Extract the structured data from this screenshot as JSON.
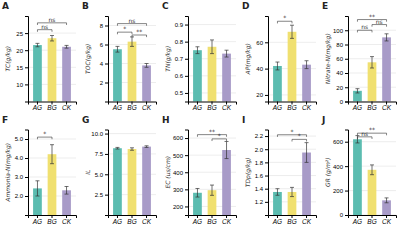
{
  "chart_data": [
    {
      "type": "bar",
      "title": "A",
      "ylabel": "TC(g/kg)",
      "categories": [
        "AG",
        "BG",
        "CK"
      ],
      "colors": [
        "#5bbcb0",
        "#f0e070",
        "#a89bc8"
      ],
      "values": [
        21.5,
        23.5,
        21.0
      ],
      "errors": [
        0.5,
        0.8,
        0.4
      ],
      "ylim": [
        5,
        30
      ],
      "yticks": [
        10,
        15,
        20,
        25
      ],
      "grid": true,
      "annotations": [
        {
          "x1": "AG",
          "x2": "BG",
          "y": 26.0,
          "text": "ns"
        },
        {
          "x1": "AG",
          "x2": "CK",
          "y": 28.0,
          "text": "ns"
        }
      ]
    },
    {
      "type": "bar",
      "title": "B",
      "ylabel": "TOC(g/kg)",
      "categories": [
        "AG",
        "BG",
        "CK"
      ],
      "colors": [
        "#5bbcb0",
        "#f0e070",
        "#a89bc8"
      ],
      "values": [
        5.5,
        6.3,
        3.8
      ],
      "errors": [
        0.3,
        0.5,
        0.2
      ],
      "ylim": [
        0,
        9
      ],
      "yticks": [
        2,
        4,
        6,
        8
      ],
      "grid": true,
      "annotations": [
        {
          "x1": "AG",
          "x2": "BG",
          "y": 7.3,
          "text": "*"
        },
        {
          "x1": "AG",
          "x2": "CK",
          "y": 8.2,
          "text": "ns"
        },
        {
          "x1": "BG",
          "x2": "CK",
          "y": 7.0,
          "text": "**"
        }
      ]
    },
    {
      "type": "bar",
      "title": "C",
      "ylabel": "TN(g/kg)",
      "categories": [
        "AG",
        "BG",
        "CK"
      ],
      "colors": [
        "#5bbcb0",
        "#f0e070",
        "#a89bc8"
      ],
      "values": [
        0.75,
        0.77,
        0.73
      ],
      "errors": [
        0.02,
        0.04,
        0.02
      ],
      "ylim": [
        0.45,
        0.95
      ],
      "yticks": [
        0.5,
        0.6,
        0.7,
        0.8,
        0.9
      ],
      "grid": true,
      "annotations": []
    },
    {
      "type": "bar",
      "title": "D",
      "ylabel": "AP(mg/kg)",
      "categories": [
        "AG",
        "BG",
        "CK"
      ],
      "colors": [
        "#5bbcb0",
        "#f0e070",
        "#a89bc8"
      ],
      "values": [
        42,
        68,
        43
      ],
      "errors": [
        3,
        5,
        3
      ],
      "ylim": [
        15,
        80
      ],
      "yticks": [
        20,
        40,
        60
      ],
      "grid": true,
      "annotations": [
        {
          "x1": "AG",
          "x2": "BG",
          "y": 76,
          "text": "*"
        }
      ]
    },
    {
      "type": "bar",
      "title": "E",
      "ylabel": "Nitrate-N(mg/kg)",
      "categories": [
        "AG",
        "BG",
        "CK"
      ],
      "colors": [
        "#5bbcb0",
        "#f0e070",
        "#a89bc8"
      ],
      "values": [
        15,
        55,
        90
      ],
      "errors": [
        3,
        8,
        5
      ],
      "ylim": [
        0,
        120
      ],
      "yticks": [
        0,
        20,
        40,
        60,
        80,
        100
      ],
      "grid": true,
      "annotations": [
        {
          "x1": "AG",
          "x2": "BG",
          "y": 100,
          "text": "ns"
        },
        {
          "x1": "BG",
          "x2": "CK",
          "y": 108,
          "text": "ns"
        },
        {
          "x1": "AG",
          "x2": "CK",
          "y": 115,
          "text": "**"
        }
      ]
    },
    {
      "type": "bar",
      "title": "F",
      "ylabel": "Ammonia-N(mg/kg)",
      "categories": [
        "AG",
        "BG",
        "CK"
      ],
      "colors": [
        "#5bbcb0",
        "#f0e070",
        "#a89bc8"
      ],
      "values": [
        2.4,
        4.2,
        2.3
      ],
      "errors": [
        0.4,
        0.5,
        0.2
      ],
      "ylim": [
        1.0,
        5.5
      ],
      "yticks": [
        {
          "value": 2,
          "label": "2.0"
        },
        {
          "value": 3,
          "label": "3.0"
        },
        {
          "value": 4,
          "label": "4.0"
        },
        {
          "value": 5,
          "label": "5.0"
        }
      ],
      "grid": true,
      "annotations": [
        {
          "x1": "AG",
          "x2": "BG",
          "y": 5.1,
          "text": "*"
        }
      ]
    },
    {
      "type": "bar",
      "title": "G",
      "ylabel": "IL",
      "categories": [
        "AG",
        "BG",
        "CK"
      ],
      "colors": [
        "#5bbcb0",
        "#f0e070",
        "#a89bc8"
      ],
      "values": [
        8.2,
        8.1,
        8.4
      ],
      "errors": [
        0.1,
        0.15,
        0.1
      ],
      "ylim": [
        0,
        10.5
      ],
      "yticks": [
        2.5,
        {
          "value": 5,
          "label": "5.0"
        },
        7.5,
        {
          "value": 10,
          "label": "10.0"
        }
      ],
      "grid": true,
      "annotations": []
    },
    {
      "type": "bar",
      "title": "H",
      "ylabel": "EC (us/cm)",
      "categories": [
        "AG",
        "BG",
        "CK"
      ],
      "colors": [
        "#5bbcb0",
        "#f0e070",
        "#a89bc8"
      ],
      "values": [
        280,
        295,
        530
      ],
      "errors": [
        25,
        30,
        50
      ],
      "ylim": [
        150,
        650
      ],
      "yticks": [
        200,
        300,
        400,
        500,
        600
      ],
      "grid": true,
      "annotations": [
        {
          "x1": "AG",
          "x2": "CK",
          "y": 620,
          "text": "**"
        },
        {
          "x1": "BG",
          "x2": "CK",
          "y": 595,
          "text": "*"
        }
      ]
    },
    {
      "type": "bar",
      "title": "I",
      "ylabel": "TDp(g/kg)",
      "categories": [
        "AG",
        "BG",
        "CK"
      ],
      "colors": [
        "#5bbcb0",
        "#f0e070",
        "#a89bc8"
      ],
      "values": [
        1.35,
        1.35,
        1.95
      ],
      "errors": [
        0.05,
        0.07,
        0.15
      ],
      "ylim": [
        1.0,
        2.3
      ],
      "yticks": [
        1.2,
        1.4,
        1.6,
        1.8,
        {
          "value": 2,
          "label": "2.0"
        },
        2.2
      ],
      "grid": true,
      "annotations": [
        {
          "x1": "AG",
          "x2": "CK",
          "y": 2.22,
          "text": "*"
        },
        {
          "x1": "BG",
          "x2": "CK",
          "y": 2.15,
          "text": "*"
        }
      ]
    },
    {
      "type": "bar",
      "title": "J",
      "ylabel": "GR (g/m²)",
      "categories": [
        "AG",
        "BG",
        "CK"
      ],
      "colors": [
        "#5bbcb0",
        "#f0e070",
        "#a89bc8"
      ],
      "values": [
        620,
        370,
        120
      ],
      "errors": [
        30,
        40,
        20
      ],
      "ylim": [
        0,
        700
      ],
      "yticks": [
        0,
        200,
        400,
        600
      ],
      "grid": true,
      "annotations": [
        {
          "x1": "AG",
          "x2": "BG",
          "y": 640,
          "text": "ns"
        },
        {
          "x1": "AG",
          "x2": "CK",
          "y": 670,
          "text": "**"
        }
      ]
    }
  ]
}
